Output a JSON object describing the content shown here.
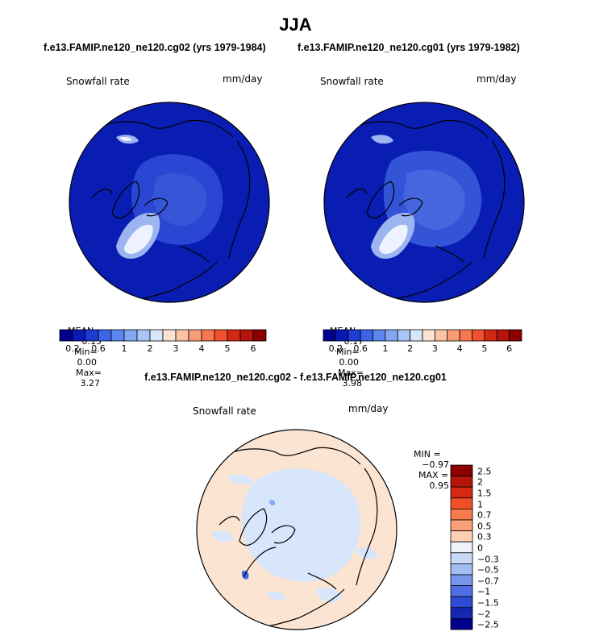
{
  "figure": {
    "season": "JJA",
    "case_a": "f.e13.FAMIP.ne120_ne120.cg02 (yrs 1979-1984)",
    "case_b": "f.e13.FAMIP.ne120_ne120.cg01 (yrs 1979-1982)",
    "diff_title": "f.e13.FAMIP.ne120_ne120.cg02 - f.e13.FAMIP.ne120_ne120.cg01"
  },
  "panels": [
    {
      "variable": "Snowfall rate",
      "units": "mm/day",
      "mean_label": "MEAN=",
      "mean": "0.15",
      "min_label": "Min=",
      "min": "0.00",
      "max_label": "Max=",
      "max": "3.27"
    },
    {
      "variable": "Snowfall rate",
      "units": "mm/day",
      "mean_label": "MEAN=",
      "mean": "0.17",
      "min_label": "Min=",
      "min": "0.00",
      "max_label": "Max=",
      "max": "3.98"
    }
  ],
  "diff_panel": {
    "variable": "Snowfall rate",
    "units": "mm/day",
    "min_label": "MIN =",
    "min": "−0.97",
    "max_label": "MAX =",
    "max": "0.95"
  },
  "colorbar_main": {
    "colors": [
      "#00008c",
      "#0a19b4",
      "#1e3cd2",
      "#3c64e6",
      "#5a87ef",
      "#82a8f4",
      "#aac6f8",
      "#d7e6fb",
      "#fde3d2",
      "#fbc3a6",
      "#f99d78",
      "#f77850",
      "#f0502d",
      "#d22814",
      "#b4140a",
      "#8c0000"
    ],
    "labels": [
      "0.2",
      "0.6",
      "1",
      "2",
      "3",
      "4",
      "5",
      "6"
    ]
  },
  "colorbar_diff": {
    "colors": [
      "#8c0000",
      "#b4140a",
      "#d72814",
      "#f05028",
      "#f87a4e",
      "#fba078",
      "#fdd0b4",
      "#f0f2fa",
      "#c8daf6",
      "#a0bef2",
      "#7896ec",
      "#4f6ee4",
      "#2d4bd7",
      "#1428b4",
      "#00008c"
    ],
    "labels": [
      "2.5",
      "2",
      "1.5",
      "1",
      "0.7",
      "0.5",
      "0.3",
      "0",
      "−0.3",
      "−0.5",
      "−0.7",
      "−1",
      "−1.5",
      "−2",
      "−2.5"
    ]
  },
  "map_colors": {
    "ocean_main": "#0a1eb4",
    "ocean_deep": "#00169e",
    "ice_light": "#2a46d2",
    "ice_lighter": "#4a6ae0",
    "greenland_white": "#eef2ff",
    "greenland_light": "#9cb4f0",
    "diff_pos": "#fce4d2",
    "diff_neg": "#d8e6fb",
    "diff_blue": "#3c64e6"
  }
}
